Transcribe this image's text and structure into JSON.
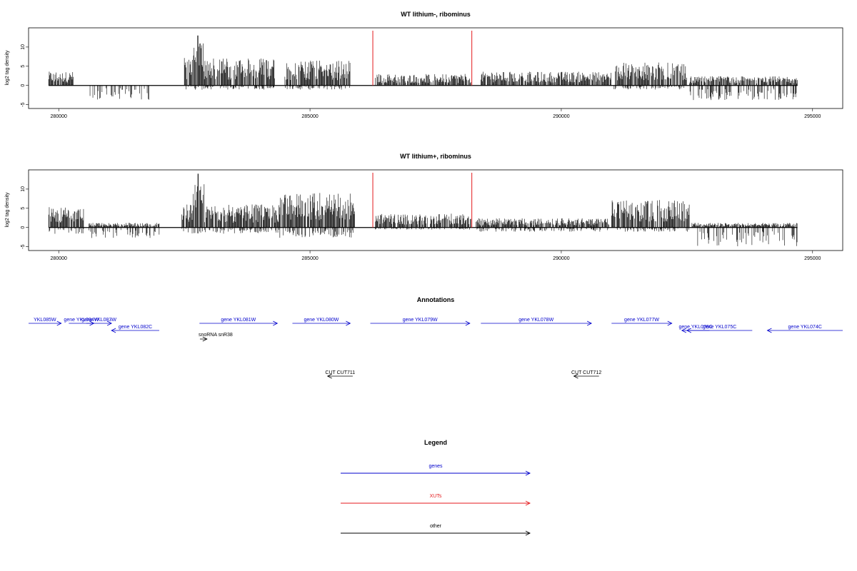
{
  "chart_data": [
    {
      "type": "bar",
      "title": "WT lithium-, ribominus",
      "ylabel": "log2 tag density",
      "xlim": [
        279400,
        295600
      ],
      "ylim": [
        -6,
        15
      ],
      "x_ticks": [
        280000,
        285000,
        290000,
        295000
      ],
      "x_tick_labels": [
        "280000",
        "285000",
        "290000",
        "295000"
      ],
      "y_ticks": [
        -5,
        0,
        5,
        10
      ],
      "y_tick_labels": [
        "-5",
        "0",
        "5",
        "10"
      ],
      "data_range": [
        279800,
        294700
      ],
      "markers": [
        286250,
        288220
      ],
      "marker_color": "#e41a1c",
      "segments": [
        {
          "start": 279800,
          "end": 280300,
          "pos": 3,
          "neg": 0
        },
        {
          "start": 280600,
          "end": 281800,
          "pos": 0,
          "neg": -3.5
        },
        {
          "start": 282500,
          "end": 284300,
          "pos": 6,
          "neg": -1,
          "peak": 13,
          "peak_at": 282770
        },
        {
          "start": 284500,
          "end": 285800,
          "pos": 5.5,
          "neg": -1
        },
        {
          "start": 286300,
          "end": 288200,
          "pos": 2.5,
          "neg": 0
        },
        {
          "start": 288400,
          "end": 291000,
          "pos": 3,
          "neg": 0
        },
        {
          "start": 291050,
          "end": 292500,
          "pos": 5,
          "neg": -1
        },
        {
          "start": 292550,
          "end": 294700,
          "pos": 2,
          "neg": -3.5
        }
      ]
    },
    {
      "type": "bar",
      "title": "WT lithium+, ribominus",
      "ylabel": "log2 tag density",
      "xlim": [
        279400,
        295600
      ],
      "ylim": [
        -6,
        15
      ],
      "x_ticks": [
        280000,
        285000,
        290000,
        295000
      ],
      "x_tick_labels": [
        "280000",
        "285000",
        "290000",
        "295000"
      ],
      "y_ticks": [
        -5,
        0,
        5,
        10
      ],
      "y_tick_labels": [
        "-5",
        "0",
        "5",
        "10"
      ],
      "data_range": [
        279800,
        294700
      ],
      "markers": [
        286250,
        288220
      ],
      "marker_color": "#e41a1c",
      "segments": [
        {
          "start": 279800,
          "end": 280500,
          "pos": 4.5,
          "neg": -1.5
        },
        {
          "start": 280600,
          "end": 282000,
          "pos": 1,
          "neg": -2.5
        },
        {
          "start": 282450,
          "end": 284400,
          "pos": 5,
          "neg": -1.5,
          "peak": 14,
          "peak_at": 282780
        },
        {
          "start": 284400,
          "end": 285900,
          "pos": 7.5,
          "neg": -2.5
        },
        {
          "start": 286300,
          "end": 288200,
          "pos": 3,
          "neg": -0.5
        },
        {
          "start": 288300,
          "end": 290950,
          "pos": 2,
          "neg": -1
        },
        {
          "start": 291000,
          "end": 292550,
          "pos": 6,
          "neg": -1
        },
        {
          "start": 292600,
          "end": 294700,
          "pos": 1,
          "neg": -4.5
        }
      ]
    }
  ],
  "annotations": {
    "title": "Annotations",
    "items": [
      {
        "label": "YKL085W",
        "start": 279400,
        "end": 280050,
        "dir": 1,
        "row": 0,
        "color": "#0000cc"
      },
      {
        "label": "gene YKL084W",
        "start": 280200,
        "end": 280700,
        "dir": 1,
        "row": 0,
        "color": "#0000cc"
      },
      {
        "label": "gene YKL083W",
        "start": 280550,
        "end": 281050,
        "dir": 1,
        "row": 0,
        "color": "#0000cc"
      },
      {
        "label": "gene YKL082C",
        "start": 281050,
        "end": 282000,
        "dir": -1,
        "row": 1,
        "color": "#0000cc"
      },
      {
        "label": "gene YKL081W",
        "start": 282800,
        "end": 284350,
        "dir": 1,
        "row": 0,
        "color": "#0000cc"
      },
      {
        "label": "snoRNA snR38",
        "start": 282810,
        "end": 282950,
        "dir": 1,
        "row": 2,
        "color": "#000000"
      },
      {
        "label": "gene YKL080W",
        "start": 284650,
        "end": 285800,
        "dir": 1,
        "row": 0,
        "color": "#0000cc"
      },
      {
        "label": "gene YKL079W",
        "start": 286200,
        "end": 288180,
        "dir": 1,
        "row": 0,
        "color": "#0000cc"
      },
      {
        "label": "gene YKL078W",
        "start": 288400,
        "end": 290600,
        "dir": 1,
        "row": 0,
        "color": "#0000cc"
      },
      {
        "label": "gene YKL077W",
        "start": 291000,
        "end": 292200,
        "dir": 1,
        "row": 0,
        "color": "#0000cc"
      },
      {
        "label": "gene YKL076C",
        "start": 292400,
        "end": 292950,
        "dir": -1,
        "row": 1,
        "color": "#0000cc"
      },
      {
        "label": "gene YKL075C",
        "start": 292500,
        "end": 293800,
        "dir": -1,
        "row": 1,
        "color": "#0000cc"
      },
      {
        "label": "gene YKL074C",
        "start": 294100,
        "end": 295600,
        "dir": -1,
        "row": 1,
        "color": "#0000cc"
      },
      {
        "label": "CUT CUT711",
        "start": 285350,
        "end": 285850,
        "dir": -1,
        "row": 3,
        "color": "#000000"
      },
      {
        "label": "CUT CUT712",
        "start": 290250,
        "end": 290750,
        "dir": -1,
        "row": 3,
        "color": "#000000"
      }
    ]
  },
  "legend": {
    "title": "Legend",
    "items": [
      {
        "label": "genes",
        "color": "#0000cc"
      },
      {
        "label": "XUTs",
        "color": "#e41a1c"
      },
      {
        "label": "other",
        "color": "#000000"
      }
    ]
  }
}
